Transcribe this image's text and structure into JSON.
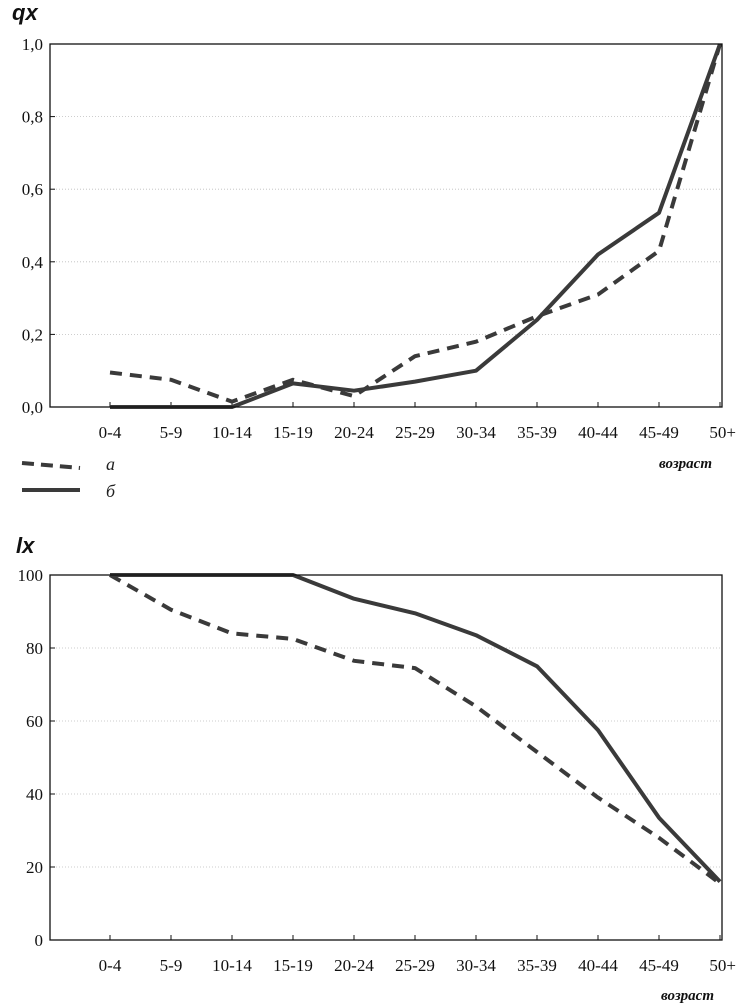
{
  "colors": {
    "line": "#3a3a3a",
    "axis": "#111111",
    "grid": "#bdbdbd"
  },
  "legend": {
    "items": [
      {
        "label": "а",
        "style": "dashed"
      },
      {
        "label": "б",
        "style": "solid"
      }
    ]
  },
  "chart_data": [
    {
      "type": "line",
      "title": "qx",
      "xlabel": "возраст",
      "ylabel": "qx",
      "categories": [
        "0-4",
        "5-9",
        "10-14",
        "15-19",
        "20-24",
        "25-29",
        "30-34",
        "35-39",
        "40-44",
        "45-49",
        "50+"
      ],
      "ylim": [
        0,
        1.0
      ],
      "yticks": [
        {
          "value": 0.0,
          "label": "0,0"
        },
        {
          "value": 0.2,
          "label": "0,2"
        },
        {
          "value": 0.4,
          "label": "0,4"
        },
        {
          "value": 0.6,
          "label": "0,6"
        },
        {
          "value": 0.8,
          "label": "0,8"
        },
        {
          "value": 1.0,
          "label": "1,0"
        }
      ],
      "grid": true,
      "series": [
        {
          "name": "а",
          "style": "dashed",
          "values": [
            0.095,
            0.075,
            0.015,
            0.075,
            0.03,
            0.14,
            0.18,
            0.25,
            0.31,
            0.43,
            1.0
          ]
        },
        {
          "name": "б",
          "style": "solid",
          "values": [
            0.0,
            0.0,
            0.0,
            0.065,
            0.045,
            0.07,
            0.1,
            0.24,
            0.42,
            0.535,
            1.0
          ]
        }
      ]
    },
    {
      "type": "line",
      "title": "lx",
      "xlabel": "возраст",
      "ylabel": "lx",
      "categories": [
        "0-4",
        "5-9",
        "10-14",
        "15-19",
        "20-24",
        "25-29",
        "30-34",
        "35-39",
        "40-44",
        "45-49",
        "50+"
      ],
      "ylim": [
        0,
        100
      ],
      "yticks": [
        {
          "value": 0,
          "label": "0"
        },
        {
          "value": 20,
          "label": "20"
        },
        {
          "value": 40,
          "label": "40"
        },
        {
          "value": 60,
          "label": "60"
        },
        {
          "value": 80,
          "label": "80"
        },
        {
          "value": 100,
          "label": "100"
        }
      ],
      "grid": true,
      "series": [
        {
          "name": "а",
          "style": "dashed",
          "values": [
            100,
            90.5,
            84,
            82.5,
            76.5,
            74.5,
            64,
            51.5,
            39,
            28,
            15.5
          ]
        },
        {
          "name": "б",
          "style": "solid",
          "values": [
            100,
            100,
            100,
            100,
            93.5,
            89.5,
            83.5,
            75,
            57.5,
            33.5,
            16
          ]
        }
      ]
    }
  ]
}
